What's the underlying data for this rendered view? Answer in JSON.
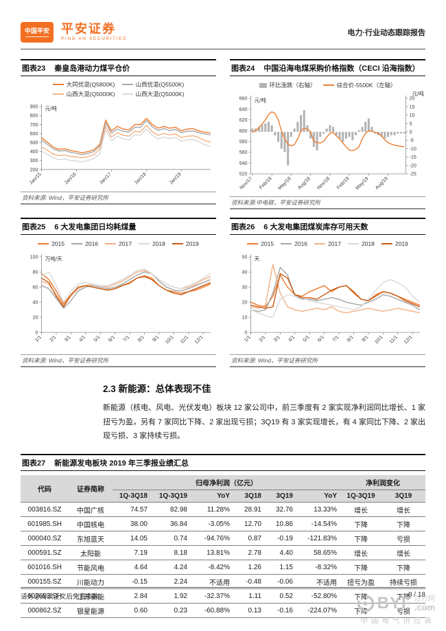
{
  "header": {
    "logo_badge": "中国平安",
    "brand": "平安证券",
    "brand_sub": "PING AN SECURITIES",
    "report_type": "电力·行业动态跟踪报告"
  },
  "colors": {
    "accent": "#f26f21",
    "orange": "#ed7d31",
    "light_orange": "#f4b183",
    "dark_orange": "#c55a11",
    "gray": "#a6a6a6",
    "light_gray": "#d9d9d9",
    "bar_gray": "#b3b3b3",
    "table_header_bg": "#d9d9d9"
  },
  "chart_data": [
    {
      "label": "图表23",
      "title": "秦皇岛港动力煤平仓价",
      "type": "line",
      "unit": "元/吨",
      "ylim": [
        200,
        900
      ],
      "ystep": 100,
      "x_ticks": [
        "Jan/15",
        "Jan/16",
        "Jan/17",
        "Jan/18",
        "Jan/19"
      ],
      "tick_every": 6,
      "series": [
        {
          "name": "大同优混(Q5800K)",
          "color": "#ed7d31",
          "values": [
            555,
            505,
            450,
            425,
            430,
            410,
            400,
            385,
            400,
            420,
            480,
            750,
            630,
            680,
            650,
            640,
            700,
            700,
            770,
            700,
            660,
            680,
            660,
            670,
            630,
            650,
            655,
            630,
            615,
            605
          ]
        },
        {
          "name": "山西优混(Q5500K)",
          "color": "#a6a6a6",
          "values": [
            530,
            480,
            430,
            405,
            410,
            390,
            380,
            365,
            380,
            400,
            460,
            720,
            605,
            650,
            625,
            615,
            670,
            670,
            745,
            675,
            635,
            655,
            635,
            645,
            610,
            625,
            630,
            610,
            595,
            585
          ]
        },
        {
          "name": "山西大混(Q5000K)",
          "color": "#f4b183",
          "values": [
            450,
            415,
            370,
            355,
            360,
            345,
            340,
            330,
            345,
            365,
            425,
            680,
            560,
            610,
            580,
            570,
            625,
            620,
            690,
            620,
            580,
            600,
            585,
            595,
            555,
            570,
            575,
            555,
            520,
            505
          ]
        },
        {
          "name": "山西大混(Q5000K)",
          "color": "#d9d9d9",
          "values": [
            405,
            370,
            330,
            310,
            315,
            300,
            295,
            285,
            300,
            320,
            380,
            640,
            520,
            570,
            540,
            530,
            585,
            580,
            650,
            580,
            540,
            560,
            545,
            555,
            515,
            530,
            535,
            510,
            475,
            460
          ]
        }
      ],
      "source": "资料来源: Wind，平安证券研究所"
    },
    {
      "label": "图表24",
      "title": "中国沿海电煤采购价格指数（CECI 沿海指数）",
      "type": "combo",
      "unit_left": "元/吨",
      "unit_right": "元/吨",
      "ylim": [
        520,
        660
      ],
      "ystep": 20,
      "y2lim": [
        -25,
        20
      ],
      "y2step": 5,
      "x_ticks": [
        "Nov/17",
        "Feb/18",
        "May/18",
        "Aug/18",
        "Nov/18",
        "Feb/19",
        "May/19",
        "Aug/19"
      ],
      "tick_every": 6,
      "bars": {
        "name": "环比涨跌（右轴）",
        "color": "#b3b3b3",
        "values": [
          2,
          2,
          3,
          4,
          5,
          6,
          4,
          -2,
          -6,
          -10,
          -12,
          -20,
          -3,
          2,
          6,
          10,
          13,
          4,
          -4,
          -9,
          -11,
          -3,
          -1,
          2,
          4,
          3,
          -2,
          -4,
          -6,
          -4,
          -3,
          -5,
          -2,
          1,
          3,
          6,
          8,
          3,
          -1,
          -2,
          -3,
          -4,
          -3,
          -2,
          -2,
          -1,
          -1,
          -1
        ]
      },
      "line": {
        "name": "综合价-5500K（左轴）",
        "color": "#ed7d31",
        "values": [
          597,
          600,
          605,
          612,
          620,
          630,
          635,
          632,
          620,
          600,
          585,
          575,
          572,
          574,
          585,
          600,
          605,
          603,
          598,
          580,
          578,
          577,
          580,
          588,
          595,
          597,
          590,
          585,
          577,
          570,
          564,
          563,
          565,
          570,
          585,
          595,
          600,
          599,
          597,
          595,
          590,
          583,
          578,
          575,
          573,
          572,
          571,
          570
        ]
      },
      "source": "资料来源:中电联，平安证券研究所"
    },
    {
      "label": "图表25",
      "title": "6 大发电集团日均耗煤量",
      "type": "line",
      "unit": "万吨/天",
      "ylim": [
        0,
        100
      ],
      "ystep": 20,
      "x_ticks": [
        "1/1",
        "2/1",
        "3/1",
        "4/1",
        "5/1",
        "6/1",
        "7/1",
        "8/1",
        "9/1",
        "10/1",
        "11/1",
        "12/1"
      ],
      "tick_every": 2,
      "series": [
        {
          "name": "2015",
          "color": "#ed7d31",
          "values": [
            78,
            70,
            55,
            38,
            50,
            60,
            62,
            60,
            58,
            56,
            58,
            62,
            65,
            72,
            75,
            72,
            62,
            56,
            54,
            52,
            54,
            56,
            60,
            64
          ]
        },
        {
          "name": "2016",
          "color": "#a6a6a6",
          "values": [
            62,
            58,
            45,
            32,
            42,
            55,
            60,
            62,
            60,
            58,
            60,
            64,
            70,
            76,
            80,
            78,
            68,
            60,
            56,
            55,
            58,
            62,
            66,
            70
          ]
        },
        {
          "name": "2017",
          "color": "#f4b183",
          "values": [
            68,
            64,
            50,
            36,
            48,
            58,
            62,
            64,
            62,
            60,
            64,
            68,
            74,
            80,
            82,
            78,
            70,
            64,
            60,
            58,
            60,
            64,
            70,
            74
          ]
        },
        {
          "name": "2018",
          "color": "#d9d9d9",
          "values": [
            75,
            80,
            62,
            40,
            55,
            64,
            66,
            64,
            62,
            62,
            66,
            70,
            76,
            82,
            84,
            78,
            70,
            64,
            60,
            58,
            62,
            66,
            72,
            78
          ]
        },
        {
          "name": "2019",
          "color": "#c55a11",
          "values": [
            72,
            66,
            48,
            34,
            50,
            60,
            62,
            60,
            58,
            56,
            58,
            62,
            66,
            72,
            74,
            70,
            62,
            56,
            52,
            50,
            54,
            58,
            62,
            66
          ]
        }
      ],
      "source": "资料来源: Wind，平安证券研究所"
    },
    {
      "label": "图表26",
      "title": "6 大发电集团煤炭库存可用天数",
      "type": "line",
      "unit": "天",
      "ylim": [
        0,
        50
      ],
      "ystep": 10,
      "x_ticks": [
        "1/1",
        "2/1",
        "3/1",
        "4/1",
        "5/1",
        "6/1",
        "7/1",
        "8/1",
        "9/1",
        "10/1",
        "11/1",
        "12/1"
      ],
      "tick_every": 2,
      "series": [
        {
          "name": "2015",
          "color": "#ed7d31",
          "values": [
            20,
            18,
            17,
            24,
            38,
            30,
            25,
            24,
            27,
            29,
            31,
            27,
            30,
            31,
            26,
            22,
            21,
            25,
            27,
            26,
            24,
            22,
            20,
            18
          ]
        },
        {
          "name": "2016",
          "color": "#a6a6a6",
          "values": [
            15,
            14,
            15,
            26,
            43,
            38,
            24,
            22,
            22,
            21,
            22,
            23,
            22,
            20,
            19,
            18,
            20,
            22,
            25,
            24,
            22,
            20,
            18,
            15
          ]
        },
        {
          "name": "2017",
          "color": "#f4b183",
          "values": [
            17,
            16,
            18,
            45,
            26,
            17,
            15,
            14,
            15,
            16,
            15,
            17,
            14,
            13,
            14,
            15,
            16,
            15,
            14,
            15,
            16,
            15,
            14,
            13
          ]
        },
        {
          "name": "2018",
          "color": "#d9d9d9",
          "values": [
            15,
            13,
            11,
            10,
            22,
            25,
            24,
            23,
            21,
            20,
            19,
            18,
            17,
            16,
            15,
            17,
            22,
            28,
            33,
            35,
            33,
            30,
            24,
            20
          ]
        },
        {
          "name": "2019",
          "color": "#c55a11",
          "values": [
            18,
            17,
            16,
            17,
            39,
            36,
            25,
            23,
            23,
            22,
            25,
            28,
            30,
            31,
            27,
            22,
            21,
            24,
            27,
            26,
            24,
            21,
            19,
            17
          ]
        }
      ],
      "source": "资料来源: Wind，平安证券研究所"
    }
  ],
  "section": {
    "heading": "2.3 新能源：总体表现不佳",
    "body": "新能源（核电、风电、光伏发电）板块 12 家公司中，前三季度有 2 家实现净利润同比增长、1 家扭亏为盈，另有 7 家同比下降、2 家出现亏损；3Q19 有 3 家实现增长，有 4 家同比下降、2 家出现亏损、3 家持续亏损。"
  },
  "table": {
    "label": "图表27",
    "title": "新能源发电板块 2019 年三季报业绩汇总",
    "group_headers": [
      "归母净利润（亿元）",
      "净利润变化"
    ],
    "col_headers": [
      "代码",
      "证券简称",
      "1Q-3Q18",
      "1Q-3Q19",
      "YoY",
      "3Q18",
      "3Q19",
      "YoY",
      "1Q-3Q19",
      "3Q19"
    ],
    "rows": [
      [
        "003816.SZ",
        "中国广核",
        "74.57",
        "82.98",
        "11.28%",
        "28.91",
        "32.76",
        "13.33%",
        "增长",
        "增长"
      ],
      [
        "601985.SH",
        "中国核电",
        "38.00",
        "36.84",
        "-3.05%",
        "12.70",
        "10.86",
        "-14.54%",
        "下降",
        "下降"
      ],
      [
        "000040.SZ",
        "东旭蓝天",
        "14.05",
        "0.74",
        "-94.76%",
        "0.87",
        "-0.19",
        "-121.83%",
        "下降",
        "亏损"
      ],
      [
        "000591.SZ",
        "太阳能",
        "7.19",
        "8.18",
        "13.81%",
        "2.78",
        "4.40",
        "58.65%",
        "增长",
        "增长"
      ],
      [
        "601016.SH",
        "节能风电",
        "4.64",
        "4.24",
        "-8.42%",
        "1.26",
        "1.15",
        "-8.32%",
        "下降",
        "下降"
      ],
      [
        "000155.SZ",
        "川能动力",
        "-0.15",
        "2.24",
        "不适用",
        "-0.48",
        "-0.06",
        "不适用",
        "扭亏为盈",
        "持续亏损"
      ],
      [
        "603693.SH",
        "江苏新能",
        "2.84",
        "1.92",
        "-32.37%",
        "1.11",
        "0.52",
        "-52.80%",
        "下降",
        "下降"
      ],
      [
        "000862.SZ",
        "银星能源",
        "0.60",
        "0.23",
        "-60.88%",
        "0.13",
        "-0.16",
        "-224.07%",
        "下降",
        "亏损"
      ]
    ]
  },
  "footer": {
    "disclaimer": "请务必阅读正文后免责条款",
    "page": "8 / 18"
  },
  "watermark": {
    "brand": "BYF",
    "domain_suffix": ".com",
    "name": "百方网",
    "slogan": "中国电气供应商"
  }
}
